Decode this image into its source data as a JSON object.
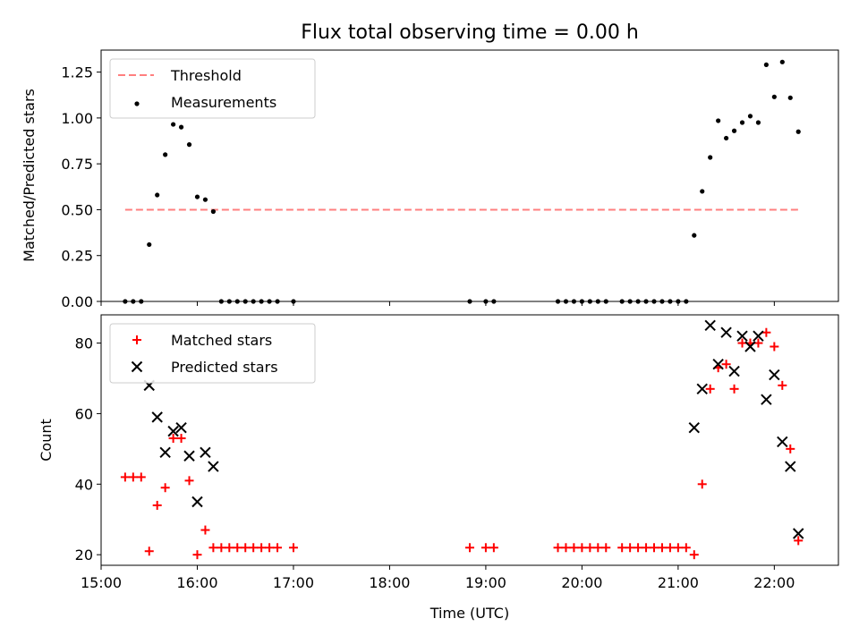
{
  "chart_data": [
    {
      "type": "scatter",
      "title": "Flux total observing time = 0.00 h",
      "xlabel": "",
      "ylabel": "Matched/Predicted stars",
      "xlim": [
        "15:00",
        "22:40"
      ],
      "ylim": [
        0,
        1.37
      ],
      "x_ticks": [
        "15:00",
        "16:00",
        "17:00",
        "18:00",
        "19:00",
        "20:00",
        "21:00",
        "22:00"
      ],
      "y_ticks": [
        "0.00",
        "0.25",
        "0.50",
        "0.75",
        "1.00",
        "1.25"
      ],
      "legend": {
        "placement": "upper-left",
        "entries": [
          "Threshold",
          "Measurements"
        ]
      },
      "threshold": {
        "name": "Threshold",
        "value": 0.5,
        "x_start": "15:15",
        "x_end": "22:15",
        "color": "#ff7f7f"
      },
      "series": [
        {
          "name": "Measurements",
          "color": "#000000",
          "points": [
            [
              "15:15",
              0
            ],
            [
              "15:20",
              0
            ],
            [
              "15:25",
              0
            ],
            [
              "15:30",
              0.31
            ],
            [
              "15:35",
              0.58
            ],
            [
              "15:40",
              0.8
            ],
            [
              "15:45",
              0.965
            ],
            [
              "15:50",
              0.95
            ],
            [
              "15:55",
              0.855
            ],
            [
              "16:00",
              0.57
            ],
            [
              "16:05",
              0.555
            ],
            [
              "16:10",
              0.49
            ],
            [
              "16:15",
              0
            ],
            [
              "16:20",
              0
            ],
            [
              "16:25",
              0
            ],
            [
              "16:30",
              0
            ],
            [
              "16:35",
              0
            ],
            [
              "16:40",
              0
            ],
            [
              "16:45",
              0
            ],
            [
              "16:50",
              0
            ],
            [
              "17:00",
              0
            ],
            [
              "18:50",
              0
            ],
            [
              "19:00",
              0
            ],
            [
              "19:05",
              0
            ],
            [
              "19:45",
              0
            ],
            [
              "19:50",
              0
            ],
            [
              "19:55",
              0
            ],
            [
              "20:00",
              0
            ],
            [
              "20:05",
              0
            ],
            [
              "20:10",
              0
            ],
            [
              "20:15",
              0
            ],
            [
              "20:25",
              0
            ],
            [
              "20:30",
              0
            ],
            [
              "20:35",
              0
            ],
            [
              "20:40",
              0
            ],
            [
              "20:45",
              0
            ],
            [
              "20:50",
              0
            ],
            [
              "20:55",
              0
            ],
            [
              "21:00",
              0
            ],
            [
              "21:05",
              0
            ],
            [
              "21:10",
              0.36
            ],
            [
              "21:15",
              0.6
            ],
            [
              "21:20",
              0.785
            ],
            [
              "21:25",
              0.985
            ],
            [
              "21:30",
              0.89
            ],
            [
              "21:35",
              0.93
            ],
            [
              "21:40",
              0.975
            ],
            [
              "21:45",
              1.01
            ],
            [
              "21:50",
              0.975
            ],
            [
              "21:55",
              1.29
            ],
            [
              "22:00",
              1.115
            ],
            [
              "22:05",
              1.305
            ],
            [
              "22:10",
              1.11
            ],
            [
              "22:15",
              0.925
            ]
          ]
        }
      ]
    },
    {
      "type": "scatter",
      "title": "",
      "xlabel": "Time (UTC)",
      "ylabel": "Count",
      "xlim": [
        "15:00",
        "22:40"
      ],
      "ylim": [
        17,
        88
      ],
      "x_ticks": [
        "15:00",
        "16:00",
        "17:00",
        "18:00",
        "19:00",
        "20:00",
        "21:00",
        "22:00"
      ],
      "y_ticks": [
        "20",
        "40",
        "60",
        "80"
      ],
      "legend": {
        "placement": "upper-left",
        "entries": [
          "Matched stars",
          "Predicted stars"
        ]
      },
      "series": [
        {
          "name": "Matched stars",
          "marker": "plus",
          "color": "#ff0000",
          "points": [
            [
              "15:15",
              42
            ],
            [
              "15:20",
              42
            ],
            [
              "15:25",
              42
            ],
            [
              "15:30",
              21
            ],
            [
              "15:35",
              34
            ],
            [
              "15:40",
              39
            ],
            [
              "15:45",
              53
            ],
            [
              "15:50",
              53
            ],
            [
              "15:55",
              41
            ],
            [
              "16:00",
              20
            ],
            [
              "16:05",
              27
            ],
            [
              "16:10",
              22
            ],
            [
              "16:15",
              22
            ],
            [
              "16:20",
              22
            ],
            [
              "16:25",
              22
            ],
            [
              "16:30",
              22
            ],
            [
              "16:35",
              22
            ],
            [
              "16:40",
              22
            ],
            [
              "16:45",
              22
            ],
            [
              "16:50",
              22
            ],
            [
              "17:00",
              22
            ],
            [
              "18:50",
              22
            ],
            [
              "19:00",
              22
            ],
            [
              "19:05",
              22
            ],
            [
              "19:45",
              22
            ],
            [
              "19:50",
              22
            ],
            [
              "19:55",
              22
            ],
            [
              "20:00",
              22
            ],
            [
              "20:05",
              22
            ],
            [
              "20:10",
              22
            ],
            [
              "20:15",
              22
            ],
            [
              "20:25",
              22
            ],
            [
              "20:30",
              22
            ],
            [
              "20:35",
              22
            ],
            [
              "20:40",
              22
            ],
            [
              "20:45",
              22
            ],
            [
              "20:50",
              22
            ],
            [
              "20:55",
              22
            ],
            [
              "21:00",
              22
            ],
            [
              "21:05",
              22
            ],
            [
              "21:10",
              20
            ],
            [
              "21:15",
              40
            ],
            [
              "21:20",
              67
            ],
            [
              "21:25",
              73
            ],
            [
              "21:30",
              74
            ],
            [
              "21:35",
              67
            ],
            [
              "21:40",
              80
            ],
            [
              "21:45",
              80
            ],
            [
              "21:50",
              80
            ],
            [
              "21:55",
              83
            ],
            [
              "22:00",
              79
            ],
            [
              "22:05",
              68
            ],
            [
              "22:10",
              50
            ],
            [
              "22:15",
              24
            ]
          ]
        },
        {
          "name": "Predicted stars",
          "marker": "x",
          "color": "#000000",
          "points": [
            [
              "15:30",
              68
            ],
            [
              "15:35",
              59
            ],
            [
              "15:40",
              49
            ],
            [
              "15:45",
              55
            ],
            [
              "15:50",
              56
            ],
            [
              "15:55",
              48
            ],
            [
              "16:00",
              35
            ],
            [
              "16:05",
              49
            ],
            [
              "16:10",
              45
            ],
            [
              "21:10",
              56
            ],
            [
              "21:15",
              67
            ],
            [
              "21:20",
              85
            ],
            [
              "21:25",
              74
            ],
            [
              "21:30",
              83
            ],
            [
              "21:35",
              72
            ],
            [
              "21:40",
              82
            ],
            [
              "21:45",
              79
            ],
            [
              "21:50",
              82
            ],
            [
              "21:55",
              64
            ],
            [
              "22:00",
              71
            ],
            [
              "22:05",
              52
            ],
            [
              "22:10",
              45
            ],
            [
              "22:15",
              26
            ]
          ]
        }
      ]
    }
  ]
}
